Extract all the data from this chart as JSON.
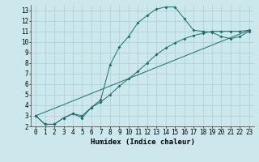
{
  "xlabel": "Humidex (Indice chaleur)",
  "background_color": "#cce8ec",
  "grid_color": "#aacdd4",
  "line_color": "#1a6e6a",
  "xlim": [
    -0.5,
    23.5
  ],
  "ylim": [
    2,
    13.5
  ],
  "xticks": [
    0,
    1,
    2,
    3,
    4,
    5,
    6,
    7,
    8,
    9,
    10,
    11,
    12,
    13,
    14,
    15,
    16,
    17,
    18,
    19,
    20,
    21,
    22,
    23
  ],
  "yticks": [
    2,
    3,
    4,
    5,
    6,
    7,
    8,
    9,
    10,
    11,
    12,
    13
  ],
  "line1_x": [
    0,
    1,
    2,
    3,
    4,
    5,
    6,
    7,
    8,
    9,
    10,
    11,
    12,
    13,
    14,
    15,
    16,
    17,
    18,
    19,
    20,
    21,
    22,
    23
  ],
  "line1_y": [
    3.0,
    2.2,
    2.2,
    2.8,
    3.2,
    2.8,
    3.8,
    4.5,
    7.8,
    9.5,
    10.5,
    11.8,
    12.5,
    13.1,
    13.3,
    13.3,
    12.2,
    11.1,
    11.0,
    10.9,
    10.5,
    10.3,
    10.5,
    11.0
  ],
  "line2_x": [
    0,
    1,
    2,
    3,
    4,
    5,
    6,
    7,
    8,
    9,
    10,
    11,
    12,
    13,
    14,
    15,
    16,
    17,
    18,
    19,
    20,
    21,
    22,
    23
  ],
  "line2_y": [
    3.0,
    2.2,
    2.2,
    2.8,
    3.2,
    3.0,
    3.8,
    4.3,
    5.0,
    5.8,
    6.5,
    7.2,
    8.0,
    8.8,
    9.4,
    9.9,
    10.3,
    10.6,
    10.8,
    11.0,
    11.0,
    11.0,
    11.0,
    11.1
  ],
  "line3_x": [
    0,
    23
  ],
  "line3_y": [
    3.0,
    11.1
  ],
  "xlabel_fontsize": 6.5,
  "tick_fontsize": 5.5
}
